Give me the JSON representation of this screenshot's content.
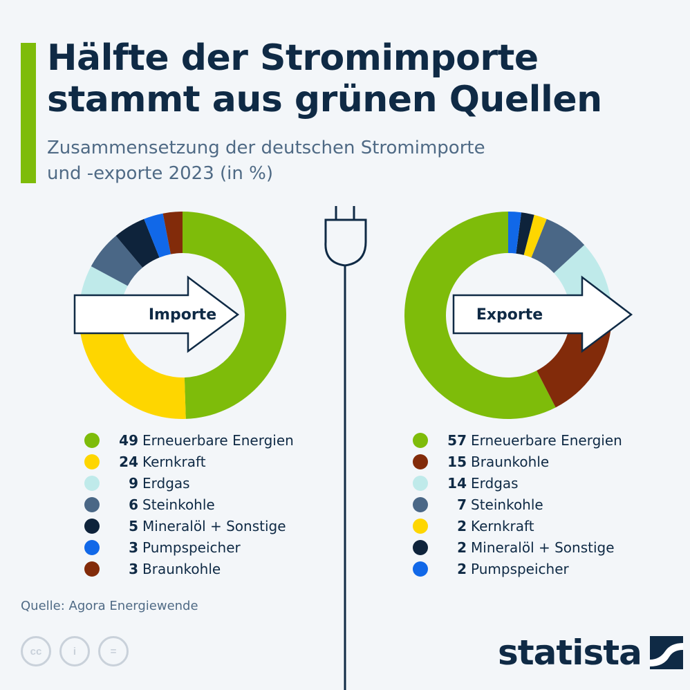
{
  "title": {
    "line1": "Hälfte der Stromimporte",
    "line2": "stammt aus grünen Quellen"
  },
  "subtitle": {
    "line1": "Zusammensetzung der deutschen Stromimporte",
    "line2": "und -exporte 2023 (in %)"
  },
  "chart_data": [
    {
      "type": "pie",
      "center_label": "Importe",
      "slices": [
        {
          "label": "Erneuerbare Energien",
          "value": 49,
          "color": "#7ebc0a"
        },
        {
          "label": "Kernkraft",
          "value": 24,
          "color": "#fed600"
        },
        {
          "label": "Erdgas",
          "value": 9,
          "color": "#bfeaea"
        },
        {
          "label": "Steinkohle",
          "value": 6,
          "color": "#4a6786"
        },
        {
          "label": "Mineralöl + Sonstige",
          "value": 5,
          "color": "#0e233b"
        },
        {
          "label": "Pumpspeicher",
          "value": 3,
          "color": "#1168e8"
        },
        {
          "label": "Braunkohle",
          "value": 3,
          "color": "#822b0a"
        }
      ]
    },
    {
      "type": "pie",
      "center_label": "Exporte",
      "slices": [
        {
          "label": "Erneuerbare Energien",
          "value": 57,
          "color": "#7ebc0a"
        },
        {
          "label": "Braunkohle",
          "value": 15,
          "color": "#822b0a"
        },
        {
          "label": "Erdgas",
          "value": 14,
          "color": "#bfeaea"
        },
        {
          "label": "Steinkohle",
          "value": 7,
          "color": "#4a6786"
        },
        {
          "label": "Kernkraft",
          "value": 2,
          "color": "#fed600"
        },
        {
          "label": "Mineralöl + Sonstige",
          "value": 2,
          "color": "#0e233b"
        },
        {
          "label": "Pumpspeicher",
          "value": 2,
          "color": "#1168e8"
        }
      ]
    }
  ],
  "source": "Quelle: Agora Energiewende",
  "license_icons": [
    {
      "icon": "cc-icon",
      "glyph": "cc"
    },
    {
      "icon": "attribution-icon",
      "glyph": "i"
    },
    {
      "icon": "no-derivatives-icon",
      "glyph": "="
    }
  ],
  "logo": {
    "text": "statista",
    "icon": "statista-logo-icon"
  },
  "decor": {
    "icon": "power-plug-icon"
  },
  "colors": {
    "accent": "#7ebc0a",
    "text": "#0f2a45",
    "muted": "#4f6a85",
    "background": "#f3f6f9"
  }
}
